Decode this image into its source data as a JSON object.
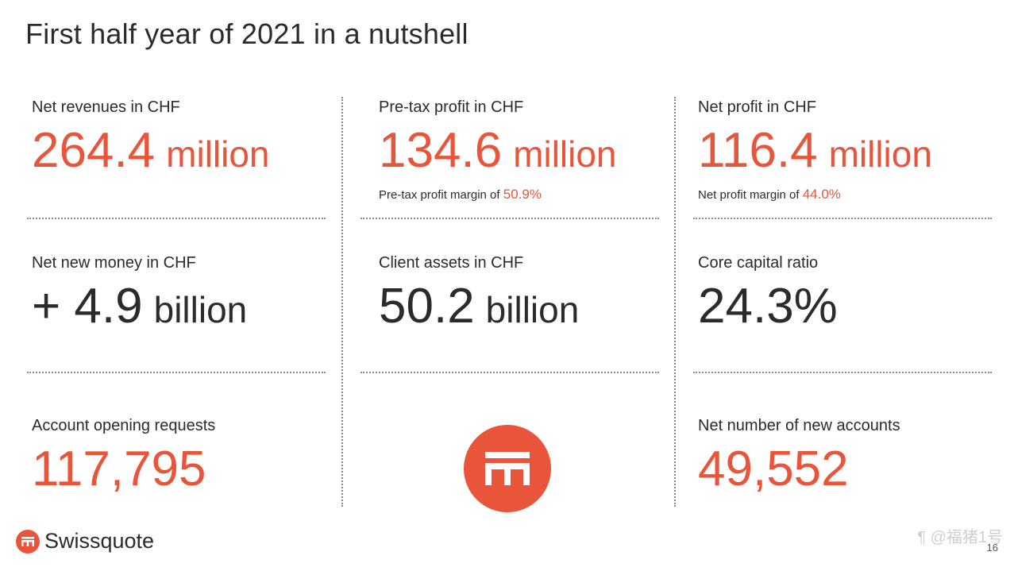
{
  "title": "First half year of 2021 in a nutshell",
  "metrics": {
    "net_revenues": {
      "label": "Net revenues in CHF",
      "value": "264.4",
      "unit": "million"
    },
    "pretax_profit": {
      "label": "Pre-tax profit in CHF",
      "value": "134.6",
      "unit": "million",
      "sub_label": "Pre-tax profit margin of ",
      "sub_value": "50.9%"
    },
    "net_profit": {
      "label": "Net profit in CHF",
      "value": "116.4",
      "unit": "million",
      "sub_label": "Net profit margin of ",
      "sub_value": "44.0%"
    },
    "net_new_money": {
      "label": "Net new money in CHF",
      "value": "+ 4.9",
      "unit": "billion"
    },
    "client_assets": {
      "label": "Client assets in CHF",
      "value": "50.2",
      "unit": "billion"
    },
    "core_capital": {
      "label": "Core capital ratio",
      "value": "24.3%"
    },
    "account_requests": {
      "label": "Account opening requests",
      "value": "117,795"
    },
    "new_accounts": {
      "label": "Net number of new accounts",
      "value": "49,552"
    }
  },
  "footer": {
    "brand": "Swissquote",
    "page": "16",
    "watermark": "¶ @福猪1号"
  },
  "colors": {
    "accent": "#e8553a",
    "text": "#2b2b2b"
  }
}
